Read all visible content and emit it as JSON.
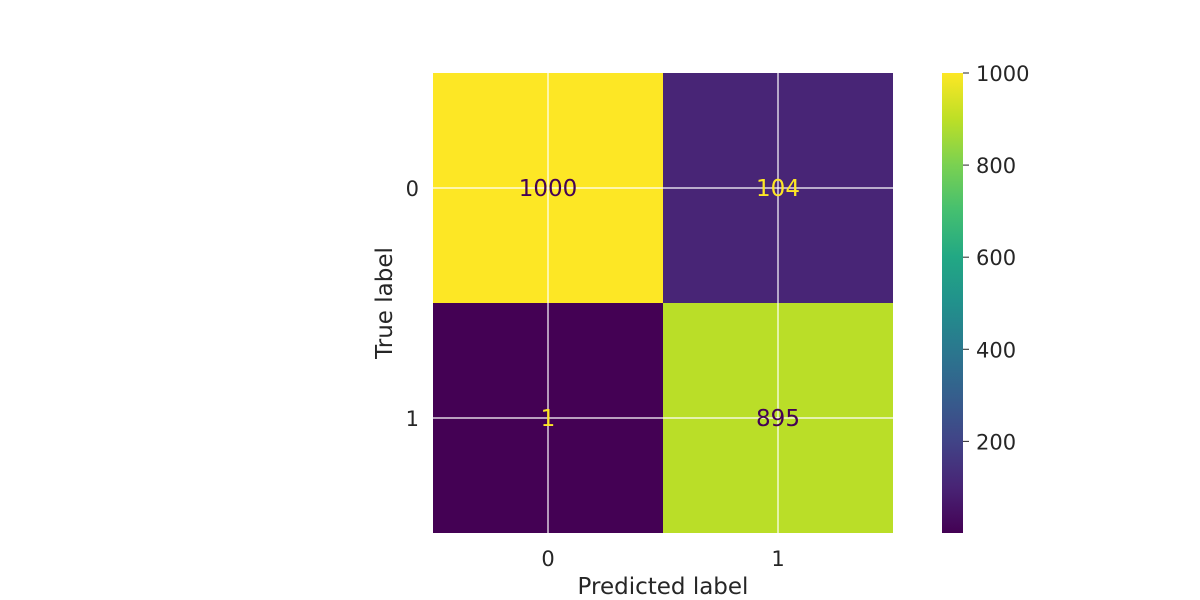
{
  "chart_data": {
    "type": "heatmap",
    "title": "",
    "xlabel": "Predicted label",
    "ylabel": "True label",
    "x_categories": [
      "0",
      "1"
    ],
    "y_categories": [
      "0",
      "1"
    ],
    "matrix": [
      [
        1000,
        104
      ],
      [
        1,
        895
      ]
    ],
    "colorbar": {
      "min": 1,
      "max": 1000,
      "ticks": [
        200,
        400,
        600,
        800,
        1000
      ],
      "colormap": "viridis"
    },
    "grid": true,
    "annotation_colors": {
      "on_light": "#440154",
      "on_dark": "#fde725"
    }
  }
}
